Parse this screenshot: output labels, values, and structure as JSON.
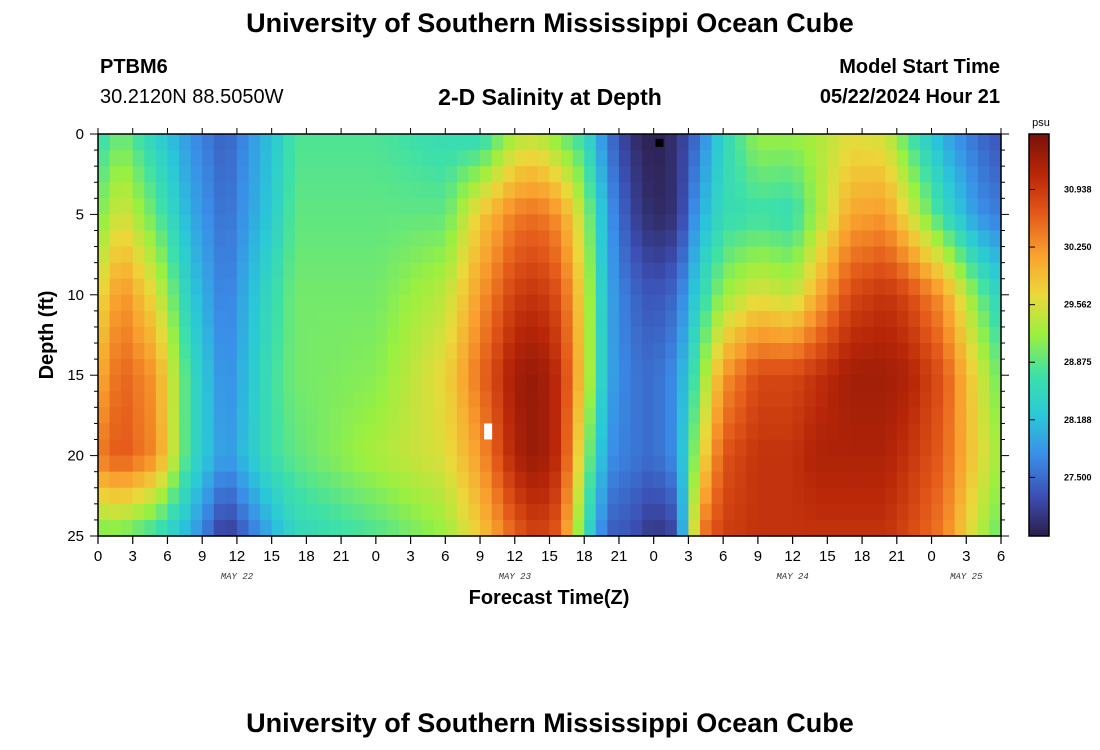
{
  "header": {
    "title": "University of Southern Mississippi Ocean Cube",
    "station": "PTBM6",
    "coords": "30.2120N  88.5050W",
    "subtitle": "2-D Salinity at Depth",
    "model_start_label": "Model Start Time",
    "model_start_value": "05/22/2024 Hour 21"
  },
  "footer": {
    "title": "University of Southern Mississippi Ocean Cube"
  },
  "chart_data": {
    "type": "heatmap",
    "title": "2-D Salinity at Depth",
    "xlabel": "Forecast Time(Z)",
    "ylabel": "Depth (ft)",
    "x_hours": [
      0,
      78
    ],
    "ylim": [
      0,
      25
    ],
    "x_tick_labels": [
      "0",
      "3",
      "6",
      "9",
      "12",
      "15",
      "18",
      "21",
      "0",
      "3",
      "6",
      "9",
      "12",
      "15",
      "18",
      "21",
      "0",
      "3",
      "6",
      "9",
      "12",
      "15",
      "18",
      "21",
      "0",
      "3",
      "6"
    ],
    "y_tick_labels": [
      "0",
      "5",
      "10",
      "15",
      "20",
      "25"
    ],
    "date_labels": [
      {
        "label": "MAY 22",
        "hour": 12
      },
      {
        "label": "MAY 23",
        "hour": 36
      },
      {
        "label": "MAY 24",
        "hour": 60
      },
      {
        "label": "MAY 25",
        "hour": 75
      }
    ],
    "colorbar": {
      "unit": "psu",
      "range": [
        26.8,
        31.6
      ],
      "ticks": [
        "27.500",
        "28.188",
        "28.875",
        "29.562",
        "30.250",
        "30.938"
      ],
      "colors": [
        "#2d1e4a",
        "#3c4fb4",
        "#3a8ee8",
        "#2ac8d8",
        "#3ee0a8",
        "#9af040",
        "#ecd83a",
        "#f9a02e",
        "#e45a1a",
        "#b82608",
        "#7a1208"
      ]
    },
    "field": {
      "description": "Salinity (psu) sampled by forecast hour (rows of depth profiles)",
      "hours": [
        0,
        2,
        5,
        8,
        11,
        15,
        17,
        24,
        30,
        33,
        36,
        38,
        40,
        42,
        44,
        46,
        48,
        50,
        52,
        54,
        57,
        60,
        62,
        65,
        68,
        70,
        73,
        76,
        78
      ],
      "depths": [
        0,
        5,
        10,
        15,
        20,
        25
      ],
      "values": [
        [
          28.6,
          29.0,
          29.6,
          30.0,
          30.4,
          29.0
        ],
        [
          29.0,
          29.6,
          30.3,
          30.6,
          30.7,
          29.0
        ],
        [
          28.4,
          28.9,
          29.6,
          30.2,
          30.3,
          28.6
        ],
        [
          27.8,
          28.0,
          28.3,
          28.6,
          28.6,
          28.0
        ],
        [
          27.4,
          27.5,
          27.6,
          27.7,
          27.8,
          27.0
        ],
        [
          28.2,
          28.3,
          28.6,
          28.7,
          28.7,
          28.0
        ],
        [
          28.8,
          28.9,
          29.0,
          29.0,
          28.9,
          28.5
        ],
        [
          28.8,
          28.9,
          29.0,
          29.1,
          29.3,
          28.8
        ],
        [
          28.6,
          28.9,
          29.4,
          29.7,
          29.6,
          29.2
        ],
        [
          28.5,
          29.8,
          30.2,
          30.5,
          30.2,
          29.8
        ],
        [
          29.3,
          30.4,
          30.9,
          31.3,
          31.2,
          30.6
        ],
        [
          29.4,
          30.5,
          31.0,
          31.4,
          31.4,
          30.9
        ],
        [
          29.0,
          30.2,
          30.7,
          31.0,
          31.0,
          30.6
        ],
        [
          28.6,
          29.3,
          29.6,
          29.7,
          29.3,
          28.7
        ],
        [
          27.6,
          27.9,
          28.0,
          28.0,
          27.8,
          27.4
        ],
        [
          27.0,
          27.2,
          27.5,
          27.6,
          27.6,
          27.3
        ],
        [
          26.8,
          26.9,
          27.3,
          27.5,
          27.5,
          27.0
        ],
        [
          27.0,
          27.0,
          27.5,
          27.8,
          27.8,
          27.2
        ],
        [
          27.6,
          28.0,
          28.5,
          29.0,
          29.5,
          30.4
        ],
        [
          28.5,
          28.6,
          29.2,
          30.2,
          30.7,
          30.9
        ],
        [
          29.2,
          28.7,
          29.6,
          30.8,
          31.0,
          31.0
        ],
        [
          29.2,
          28.6,
          29.4,
          30.8,
          31.0,
          31.0
        ],
        [
          29.3,
          29.2,
          30.0,
          31.0,
          31.2,
          31.0
        ],
        [
          29.6,
          30.1,
          30.8,
          31.3,
          31.2,
          31.0
        ],
        [
          29.5,
          30.2,
          31.0,
          31.3,
          31.2,
          31.0
        ],
        [
          28.8,
          29.6,
          30.8,
          31.2,
          31.0,
          30.8
        ],
        [
          28.0,
          28.6,
          30.2,
          30.7,
          30.6,
          30.4
        ],
        [
          27.5,
          27.8,
          29.0,
          29.6,
          29.7,
          29.4
        ],
        [
          27.3,
          27.6,
          28.4,
          28.9,
          29.2,
          28.9
        ]
      ]
    },
    "missing_markers": [
      {
        "hour": 48.5,
        "depth": 0.3,
        "color": "#000000"
      },
      {
        "hour": 33.7,
        "depth": 18.0,
        "color": "#ffffff"
      }
    ]
  }
}
